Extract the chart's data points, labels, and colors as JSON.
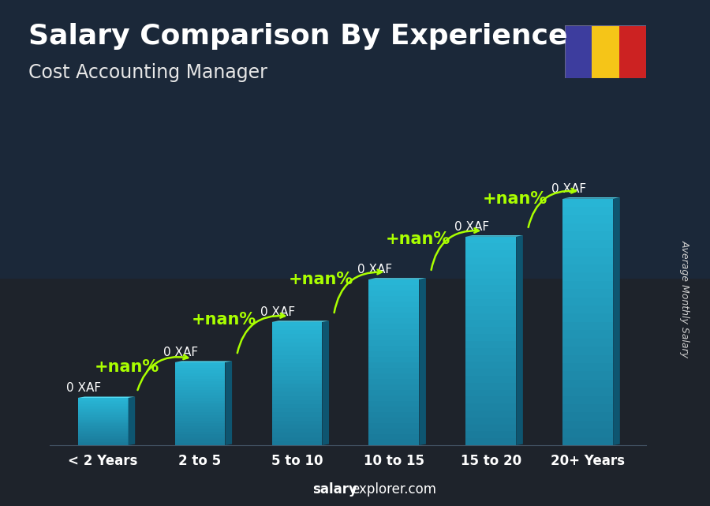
{
  "title": "Salary Comparison By Experience",
  "subtitle": "Cost Accounting Manager",
  "categories": [
    "< 2 Years",
    "2 to 5",
    "5 to 10",
    "10 to 15",
    "15 to 20",
    "20+ Years"
  ],
  "bar_label": "0 XAF",
  "pct_label": "+nan%",
  "ylabel": "Average Monthly Salary",
  "footer_bold": "salary",
  "footer_normal": "explorer.com",
  "heights": [
    1.0,
    1.75,
    2.6,
    3.5,
    4.4,
    5.2
  ],
  "bar_color_main": "#29b8d8",
  "bar_color_dark": "#1a7a9a",
  "bar_color_light": "#55d8f0",
  "bar_color_top": "#70eeff",
  "title_color": "#ffffff",
  "subtitle_color": "#e8e8e8",
  "label_color": "#ffffff",
  "pct_color": "#aaff00",
  "footer_color": "#ffffff",
  "ylabel_color": "#cccccc",
  "arrow_color": "#aaff00",
  "flag_colors": [
    "#3d3d9e",
    "#f5c518",
    "#cc2222"
  ],
  "bg_color": "#1c2a3a",
  "title_fontsize": 26,
  "subtitle_fontsize": 17,
  "bar_label_fontsize": 11,
  "pct_fontsize": 15,
  "xlabel_fontsize": 12,
  "footer_fontsize": 12,
  "ylabel_fontsize": 9
}
